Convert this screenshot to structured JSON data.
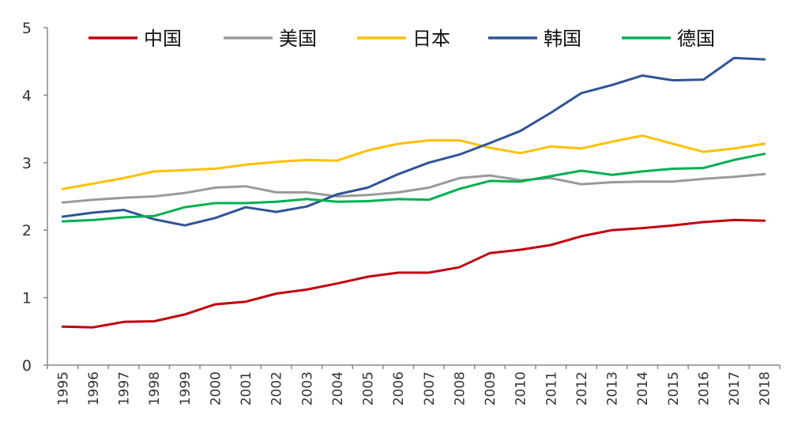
{
  "chart_data": {
    "type": "line",
    "title": "",
    "xlabel": "",
    "ylabel": "",
    "ylim": [
      0,
      5
    ],
    "yticks": [
      "0",
      "1",
      "2",
      "3",
      "4",
      "5"
    ],
    "grid": false,
    "legend": "top",
    "x": [
      "1995",
      "1996",
      "1997",
      "1998",
      "1999",
      "2000",
      "2001",
      "2002",
      "2003",
      "2004",
      "2005",
      "2006",
      "2007",
      "2008",
      "2009",
      "2010",
      "2011",
      "2012",
      "2013",
      "2014",
      "2015",
      "2016",
      "2017",
      "2018"
    ],
    "series": [
      {
        "name": "中国",
        "color": "#c0000f",
        "values": [
          0.57,
          0.56,
          0.64,
          0.65,
          0.75,
          0.9,
          0.94,
          1.06,
          1.12,
          1.21,
          1.31,
          1.37,
          1.37,
          1.45,
          1.66,
          1.71,
          1.78,
          1.91,
          2.0,
          2.03,
          2.07,
          2.12,
          2.15,
          2.14
        ]
      },
      {
        "name": "美国",
        "color": "#9a9a9a",
        "values": [
          2.41,
          2.45,
          2.48,
          2.5,
          2.55,
          2.63,
          2.65,
          2.56,
          2.56,
          2.5,
          2.52,
          2.56,
          2.63,
          2.77,
          2.81,
          2.74,
          2.77,
          2.68,
          2.71,
          2.72,
          2.72,
          2.76,
          2.79,
          2.83
        ]
      },
      {
        "name": "日本",
        "color": "#ffc000",
        "values": [
          2.61,
          2.69,
          2.77,
          2.87,
          2.89,
          2.91,
          2.97,
          3.01,
          3.04,
          3.03,
          3.18,
          3.28,
          3.33,
          3.33,
          3.22,
          3.14,
          3.24,
          3.21,
          3.31,
          3.4,
          3.28,
          3.16,
          3.21,
          3.28
        ]
      },
      {
        "name": "韩国",
        "color": "#305496",
        "values": [
          2.2,
          2.26,
          2.3,
          2.16,
          2.07,
          2.18,
          2.34,
          2.27,
          2.35,
          2.53,
          2.63,
          2.83,
          3.0,
          3.12,
          3.29,
          3.47,
          3.74,
          4.03,
          4.15,
          4.29,
          4.22,
          4.23,
          4.55,
          4.53
        ]
      },
      {
        "name": "德国",
        "color": "#00b050",
        "values": [
          2.13,
          2.15,
          2.19,
          2.21,
          2.34,
          2.4,
          2.4,
          2.42,
          2.46,
          2.42,
          2.43,
          2.46,
          2.45,
          2.61,
          2.73,
          2.72,
          2.8,
          2.88,
          2.82,
          2.87,
          2.91,
          2.92,
          3.04,
          3.13
        ]
      }
    ]
  }
}
